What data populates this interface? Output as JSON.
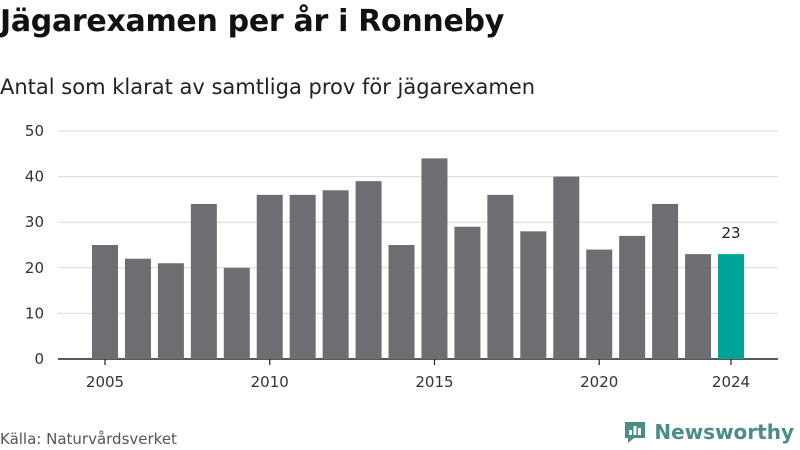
{
  "title": "Jägarexamen per år i Ronneby",
  "subtitle": "Antal som klarat av samtliga prov för jägarexamen",
  "source": "Källa: Naturvårdsverket",
  "brand": {
    "name": "Newsworthy",
    "icon": "newsworthy-logo-icon",
    "color": "#4a8c86"
  },
  "colors": {
    "bar": "#6e6d72",
    "highlight": "#00a39a",
    "grid": "#d9d9d9",
    "axis": "#222222"
  },
  "chart_data": {
    "type": "bar",
    "x": [
      2005,
      2006,
      2007,
      2008,
      2009,
      2010,
      2011,
      2012,
      2013,
      2014,
      2015,
      2016,
      2017,
      2018,
      2019,
      2020,
      2021,
      2022,
      2023,
      2024
    ],
    "values": [
      25,
      22,
      21,
      34,
      20,
      36,
      36,
      37,
      39,
      25,
      44,
      29,
      36,
      28,
      40,
      24,
      27,
      34,
      23,
      23
    ],
    "x_ticks": [
      "2005",
      "2010",
      "2015",
      "2020",
      "2024"
    ],
    "y_ticks": [
      "0",
      "10",
      "20",
      "30",
      "40",
      "50"
    ],
    "ylim": [
      0,
      50
    ],
    "highlight_index": 19,
    "highlight_label": "23",
    "grid": true,
    "legend": "none",
    "title": "Jägarexamen per år i Ronneby",
    "subtitle": "Antal som klarat av samtliga prov för jägarexamen"
  }
}
